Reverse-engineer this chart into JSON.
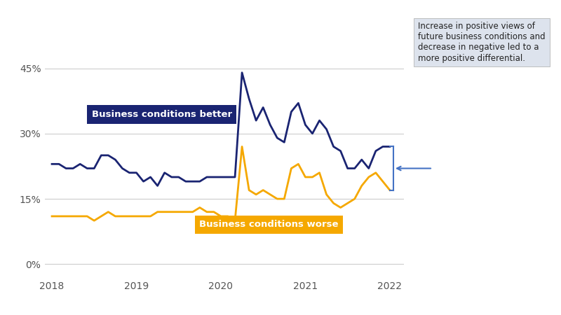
{
  "background_color": "#ffffff",
  "better_color": "#1a2472",
  "worse_color": "#f5a800",
  "annotation_arrow_color": "#4472c4",
  "annotation_box_color": "#dde3ed",
  "yticks": [
    0,
    15,
    30,
    45
  ],
  "ylim": [
    -3,
    52
  ],
  "xtick_labels": [
    "2018",
    "2019",
    "2020",
    "2021",
    "2022"
  ],
  "better_label": "Business conditions better",
  "worse_label": "Business conditions worse",
  "annotation_text": "Increase in positive views of\nfuture business conditions and\ndecrease in negative led to a\nmore positive differential.",
  "better_values": [
    23,
    23,
    22,
    22,
    23,
    22,
    22,
    25,
    25,
    24,
    22,
    21,
    21,
    19,
    20,
    18,
    21,
    20,
    20,
    19,
    19,
    19,
    20,
    20,
    20,
    20,
    20,
    44,
    38,
    33,
    36,
    32,
    29,
    28,
    35,
    37,
    32,
    30,
    33,
    31,
    27,
    26,
    22,
    22,
    24,
    22,
    26,
    27,
    27
  ],
  "worse_values": [
    11,
    11,
    11,
    11,
    11,
    11,
    10,
    11,
    12,
    11,
    11,
    11,
    11,
    11,
    11,
    12,
    12,
    12,
    12,
    12,
    12,
    13,
    12,
    12,
    11,
    11,
    10,
    27,
    17,
    16,
    17,
    16,
    15,
    15,
    22,
    23,
    20,
    20,
    21,
    16,
    14,
    13,
    14,
    15,
    18,
    20,
    21,
    19,
    17
  ],
  "n_points": 49
}
